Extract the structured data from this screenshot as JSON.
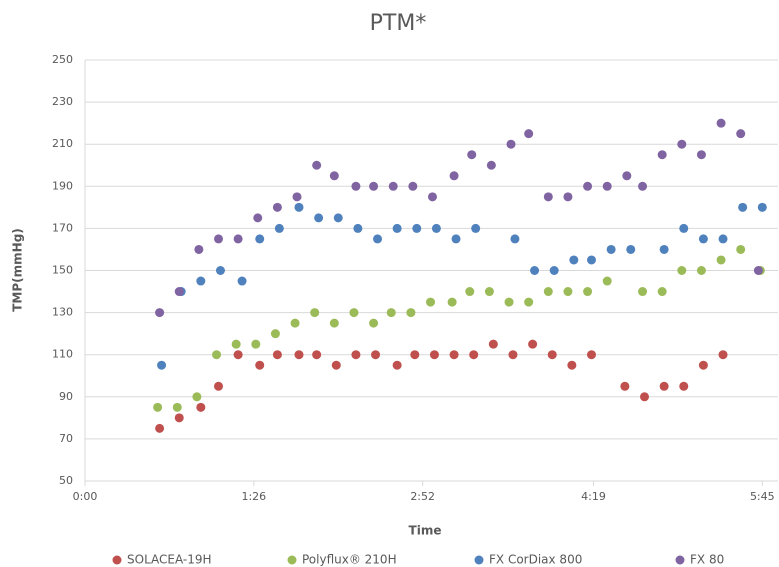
{
  "chart_data": {
    "type": "scatter",
    "title": "PTM*",
    "x_label": "Time",
    "y_label": "TMP(mmHg)",
    "xlim": [
      0,
      353
    ],
    "ylim": [
      50,
      250
    ],
    "xticks": [
      {
        "value": 0,
        "label": "0:00"
      },
      {
        "value": 86,
        "label": "1:26"
      },
      {
        "value": 172,
        "label": "2:52"
      },
      {
        "value": 259,
        "label": "4:19"
      },
      {
        "value": 345,
        "label": "5:45"
      }
    ],
    "yticks": [
      50,
      70,
      90,
      110,
      130,
      150,
      170,
      190,
      210,
      230,
      250
    ],
    "grid": true,
    "legend": "bottom",
    "series": [
      {
        "name": "SOLACEA-19H",
        "color": "#c0504d",
        "x": [
          38,
          48,
          59,
          68,
          78,
          89,
          98,
          109,
          118,
          128,
          138,
          148,
          159,
          168,
          178,
          188,
          198,
          208,
          218,
          228,
          238,
          248,
          258,
          275,
          285,
          295,
          305,
          315,
          325
        ],
        "values": [
          75,
          80,
          85,
          95,
          110,
          105,
          110,
          110,
          110,
          105,
          110,
          110,
          105,
          110,
          110,
          110,
          110,
          115,
          110,
          115,
          110,
          105,
          110,
          95,
          90,
          95,
          95,
          105,
          110
        ]
      },
      {
        "name": "Polyflux® 210H",
        "color": "#9bbb59",
        "x": [
          37,
          47,
          57,
          67,
          77,
          87,
          97,
          107,
          117,
          127,
          137,
          147,
          156,
          166,
          176,
          187,
          196,
          206,
          216,
          226,
          236,
          246,
          256,
          266,
          284,
          294,
          304,
          314,
          324,
          334,
          344
        ],
        "values": [
          85,
          85,
          90,
          110,
          115,
          115,
          120,
          125,
          130,
          125,
          130,
          125,
          130,
          130,
          135,
          135,
          140,
          140,
          135,
          135,
          140,
          140,
          140,
          145,
          140,
          140,
          150,
          150,
          155,
          160,
          150
        ]
      },
      {
        "name": "FX CorDiax 800",
        "color": "#4f81bd",
        "x": [
          39,
          49,
          59,
          69,
          80,
          89,
          99,
          109,
          119,
          129,
          139,
          149,
          159,
          169,
          179,
          189,
          199,
          219,
          229,
          239,
          249,
          258,
          268,
          278,
          295,
          305,
          315,
          325,
          335,
          345
        ],
        "values": [
          105,
          140,
          145,
          150,
          145,
          165,
          170,
          180,
          175,
          175,
          170,
          165,
          170,
          170,
          170,
          165,
          170,
          165,
          150,
          150,
          155,
          155,
          160,
          160,
          160,
          170,
          165,
          165,
          180,
          180
        ]
      },
      {
        "name": "FX 80",
        "color": "#8064a2",
        "x": [
          38,
          48,
          58,
          68,
          78,
          88,
          98,
          108,
          118,
          127,
          138,
          147,
          157,
          167,
          177,
          188,
          197,
          207,
          217,
          226,
          236,
          246,
          256,
          266,
          276,
          284,
          294,
          304,
          314,
          324,
          334,
          343
        ],
        "values": [
          130,
          140,
          160,
          165,
          165,
          175,
          180,
          185,
          200,
          195,
          190,
          190,
          190,
          190,
          185,
          195,
          205,
          200,
          210,
          215,
          185,
          185,
          190,
          190,
          195,
          190,
          205,
          210,
          205,
          220,
          215,
          150
        ]
      }
    ]
  }
}
